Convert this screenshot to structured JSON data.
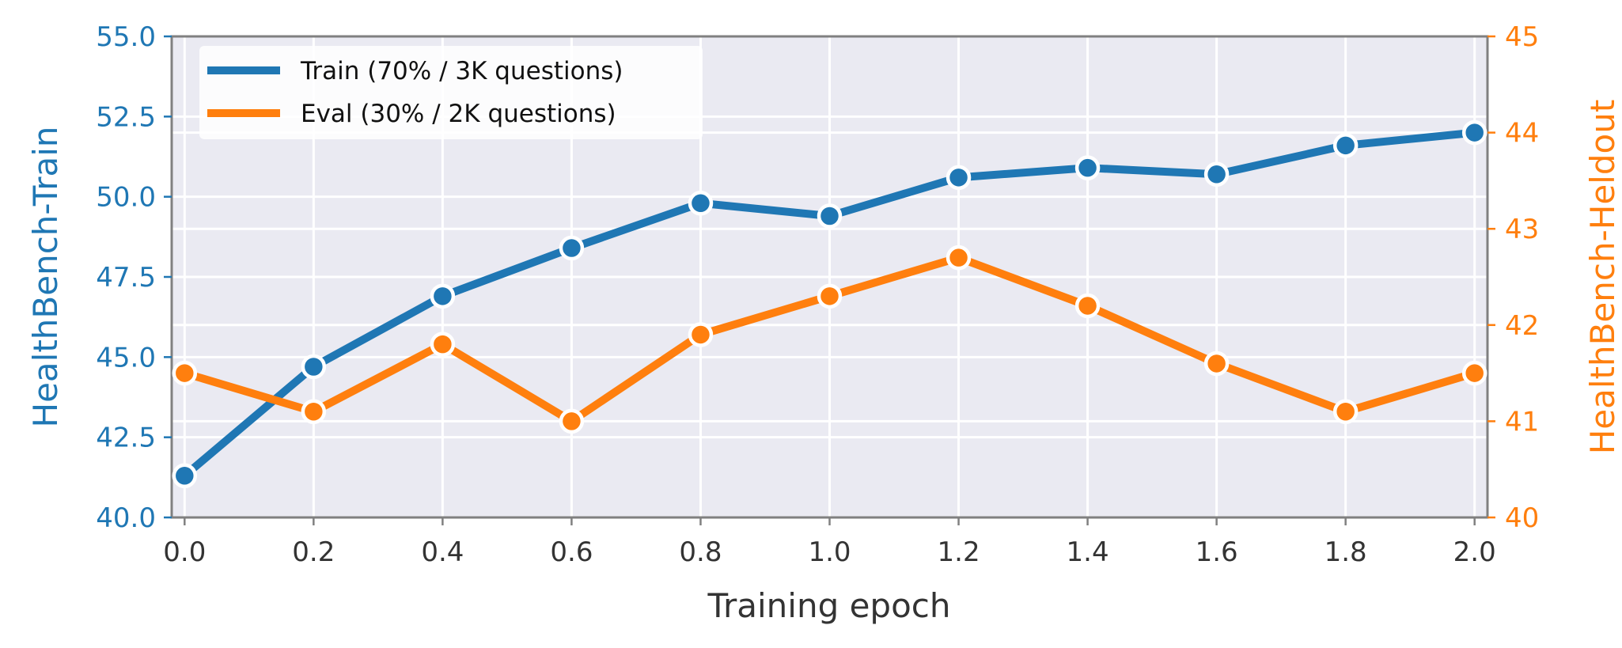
{
  "colors": {
    "train": "#1f77b4",
    "eval": "#ff7f0e",
    "plot_background": "#eaeaf2",
    "grid": "#ffffff",
    "frame": "#808080"
  },
  "chart_data": {
    "type": "line",
    "xlabel": "Training epoch",
    "ylabel_left": "HealthBench-Train",
    "ylabel_right": "HealthBench-Heldout",
    "x": [
      0.0,
      0.2,
      0.4,
      0.6,
      0.8,
      1.0,
      1.2,
      1.4,
      1.6,
      1.8,
      2.0
    ],
    "xlim": [
      -0.02,
      2.02
    ],
    "x_ticks": [
      "0.0",
      "0.2",
      "0.4",
      "0.6",
      "0.8",
      "1.0",
      "1.2",
      "1.4",
      "1.6",
      "1.8",
      "2.0"
    ],
    "ylim_left": [
      40.0,
      55.0
    ],
    "y_ticks_left": [
      "40.0",
      "42.5",
      "45.0",
      "47.5",
      "50.0",
      "52.5",
      "55.0"
    ],
    "ylim_right": [
      40,
      45
    ],
    "y_ticks_right": [
      "40",
      "41",
      "42",
      "43",
      "44",
      "45"
    ],
    "grid": true,
    "legend_position": "top-left",
    "series": [
      {
        "name": "Train (70% / 3K questions)",
        "axis": "left",
        "color": "#1f77b4",
        "values": [
          41.3,
          44.7,
          46.9,
          48.4,
          49.8,
          49.4,
          50.6,
          50.9,
          50.7,
          51.6,
          52.0
        ]
      },
      {
        "name": "Eval (30% / 2K questions)",
        "axis": "right",
        "color": "#ff7f0e",
        "values": [
          41.5,
          41.1,
          41.8,
          41.0,
          41.9,
          42.3,
          42.7,
          42.2,
          41.6,
          41.1,
          41.5
        ]
      }
    ]
  }
}
